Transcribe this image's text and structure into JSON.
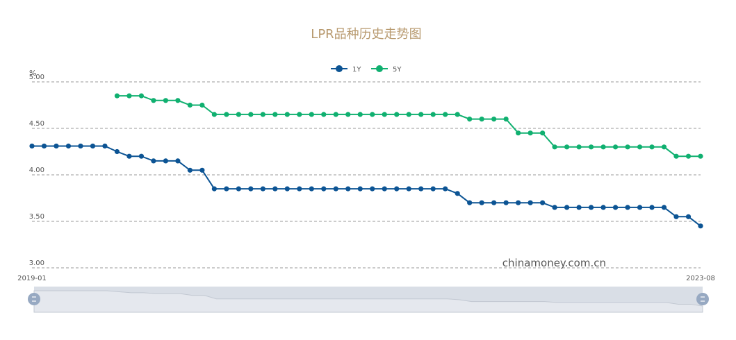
{
  "chart_data": {
    "type": "line",
    "title": "LPR品种历史走势图",
    "ylabel": "%",
    "ylim": [
      3.0,
      5.0
    ],
    "yticks": [
      "5.00",
      "4.50",
      "4.00",
      "3.50",
      "3.00"
    ],
    "grid": true,
    "legend_position": "top-center",
    "x_start_label": "2019-01",
    "x_end_label": "2023-08",
    "x": [
      "2019-01",
      "2019-02",
      "2019-03",
      "2019-04",
      "2019-05",
      "2019-06",
      "2019-07",
      "2019-08",
      "2019-09",
      "2019-10",
      "2019-11",
      "2019-12",
      "2020-01",
      "2020-02",
      "2020-03",
      "2020-04",
      "2020-05",
      "2020-06",
      "2020-07",
      "2020-08",
      "2020-09",
      "2020-10",
      "2020-11",
      "2020-12",
      "2021-01",
      "2021-02",
      "2021-03",
      "2021-04",
      "2021-05",
      "2021-06",
      "2021-07",
      "2021-08",
      "2021-09",
      "2021-10",
      "2021-11",
      "2021-12",
      "2022-01",
      "2022-02",
      "2022-03",
      "2022-04",
      "2022-05",
      "2022-06",
      "2022-07",
      "2022-08",
      "2022-09",
      "2022-10",
      "2022-11",
      "2022-12",
      "2023-01",
      "2023-02",
      "2023-03",
      "2023-04",
      "2023-05",
      "2023-06",
      "2023-07",
      "2023-08"
    ],
    "series": [
      {
        "name": "1Y",
        "color": "#0c5494",
        "values": [
          4.31,
          4.31,
          4.31,
          4.31,
          4.31,
          4.31,
          4.31,
          4.25,
          4.2,
          4.2,
          4.15,
          4.15,
          4.15,
          4.05,
          4.05,
          3.85,
          3.85,
          3.85,
          3.85,
          3.85,
          3.85,
          3.85,
          3.85,
          3.85,
          3.85,
          3.85,
          3.85,
          3.85,
          3.85,
          3.85,
          3.85,
          3.85,
          3.85,
          3.85,
          3.85,
          3.8,
          3.7,
          3.7,
          3.7,
          3.7,
          3.7,
          3.7,
          3.7,
          3.65,
          3.65,
          3.65,
          3.65,
          3.65,
          3.65,
          3.65,
          3.65,
          3.65,
          3.65,
          3.55,
          3.55,
          3.45
        ]
      },
      {
        "name": "5Y",
        "color": "#10b070",
        "values": [
          null,
          null,
          null,
          null,
          null,
          null,
          null,
          4.85,
          4.85,
          4.85,
          4.8,
          4.8,
          4.8,
          4.75,
          4.75,
          4.65,
          4.65,
          4.65,
          4.65,
          4.65,
          4.65,
          4.65,
          4.65,
          4.65,
          4.65,
          4.65,
          4.65,
          4.65,
          4.65,
          4.65,
          4.65,
          4.65,
          4.65,
          4.65,
          4.65,
          4.65,
          4.6,
          4.6,
          4.6,
          4.6,
          4.45,
          4.45,
          4.45,
          4.3,
          4.3,
          4.3,
          4.3,
          4.3,
          4.3,
          4.3,
          4.3,
          4.3,
          4.3,
          4.2,
          4.2,
          4.2
        ]
      }
    ]
  },
  "watermark": "chinamoney.com.cn",
  "colors": {
    "title": "#b89a6f",
    "grid": "#9a9a9a",
    "axis_text": "#555555",
    "slider_fill": "#d9dee6",
    "slider_handle": "#97a9c2"
  }
}
